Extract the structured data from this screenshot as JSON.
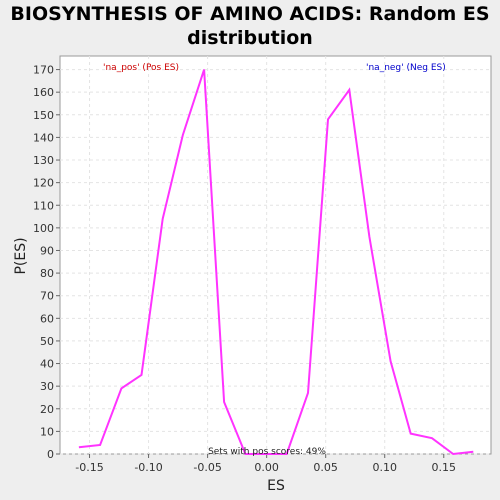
{
  "chart_data": {
    "type": "line",
    "title": "BIOSYNTHESIS OF AMINO ACIDS: Random ES distribution",
    "xlabel": "ES",
    "ylabel": "P(ES)",
    "xlim": [
      -0.175,
      0.19
    ],
    "ylim": [
      0,
      176
    ],
    "x_ticks": [
      -0.15,
      -0.1,
      -0.05,
      0.0,
      0.05,
      0.1,
      0.15
    ],
    "x_tick_labels": [
      "-0.15",
      "-0.10",
      "-0.05",
      "0.00",
      "0.05",
      "0.10",
      "0.15"
    ],
    "y_ticks": [
      0,
      10,
      20,
      30,
      40,
      50,
      60,
      70,
      80,
      90,
      100,
      110,
      120,
      130,
      140,
      150,
      160,
      170
    ],
    "grid": true,
    "series": [
      {
        "color": "#ff33ff",
        "x": [
          -0.159,
          -0.141,
          -0.123,
          -0.106,
          -0.088,
          -0.071,
          -0.053,
          -0.036,
          -0.018,
          0.017,
          0.035,
          0.052,
          0.07,
          0.087,
          0.105,
          0.122,
          0.14,
          0.158,
          0.175
        ],
        "y": [
          3,
          4,
          29,
          35,
          104,
          141,
          170,
          23,
          0,
          0,
          27,
          148,
          161,
          96,
          41,
          9,
          7,
          0,
          1
        ]
      }
    ],
    "annotations": {
      "pos_label": "'na_pos' (Pos ES)",
      "neg_label": "'na_neg' (Neg ES)",
      "footer": "Sets with pos scores: 49%"
    },
    "colors": {
      "pos": "#cc0000",
      "neg": "#0000cc",
      "plot_bg": "#ffffff",
      "grid": "#e4e4e4"
    }
  }
}
